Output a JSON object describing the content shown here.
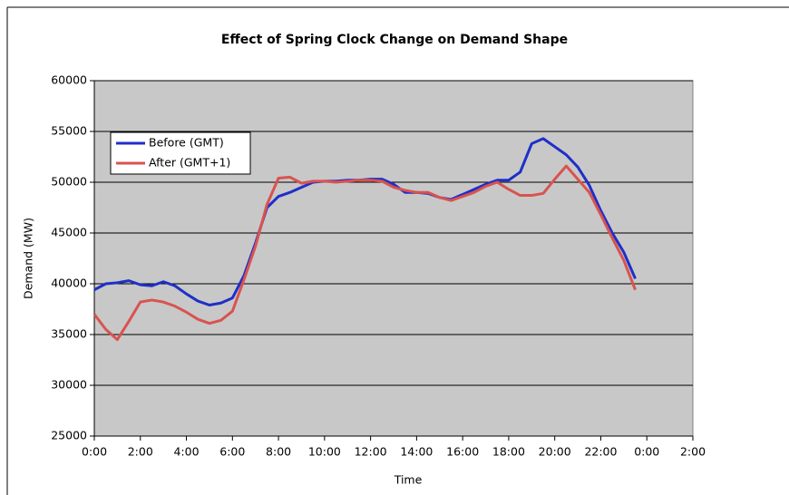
{
  "chart_data": {
    "type": "line",
    "title": "Effect of Spring Clock Change on Demand Shape",
    "x_label": "Time",
    "y_label": "Demand (MW)",
    "x": [
      0,
      0.5,
      1,
      1.5,
      2,
      2.5,
      3,
      3.5,
      4,
      4.5,
      5,
      5.5,
      6,
      6.5,
      7,
      7.5,
      8,
      8.5,
      9,
      9.5,
      10,
      10.5,
      11,
      11.5,
      12,
      12.5,
      13,
      13.5,
      14,
      14.5,
      15,
      15.5,
      16,
      16.5,
      17,
      17.5,
      18,
      18.5,
      19,
      19.5,
      20,
      20.5,
      21,
      21.5,
      22,
      22.5,
      23,
      23.5
    ],
    "series": [
      {
        "name": "Before (GMT)",
        "color": "#1f2fc8",
        "values": [
          39400,
          40000,
          40100,
          40300,
          39900,
          39800,
          40200,
          39800,
          39000,
          38300,
          37900,
          38100,
          38600,
          40800,
          44000,
          47500,
          48600,
          49000,
          49500,
          50000,
          50100,
          50100,
          50200,
          50200,
          50300,
          50300,
          49800,
          49000,
          49000,
          48900,
          48500,
          48300,
          48800,
          49300,
          49800,
          50200,
          50200,
          51000,
          53800,
          54300,
          53500,
          52700,
          51500,
          49700,
          47200,
          45000,
          43100,
          40500
        ]
      },
      {
        "name": "After (GMT+1)",
        "color": "#d9534f",
        "values": [
          37000,
          35500,
          34500,
          36300,
          38200,
          38400,
          38200,
          37800,
          37200,
          36500,
          36100,
          36400,
          37300,
          40400,
          43700,
          47800,
          50400,
          50500,
          49900,
          50100,
          50100,
          50000,
          50100,
          50200,
          50200,
          50100,
          49500,
          49200,
          49000,
          49000,
          48500,
          48200,
          48600,
          49000,
          49600,
          50000,
          49300,
          48700,
          48700,
          48900,
          50300,
          51600,
          50300,
          49000,
          46800,
          44500,
          42300,
          39400
        ]
      }
    ],
    "xlim": [
      0,
      26
    ],
    "xticks": [
      {
        "value": 0,
        "label": "0:00"
      },
      {
        "value": 2,
        "label": "2:00"
      },
      {
        "value": 4,
        "label": "4:00"
      },
      {
        "value": 6,
        "label": "6:00"
      },
      {
        "value": 8,
        "label": "8:00"
      },
      {
        "value": 10,
        "label": "10:00"
      },
      {
        "value": 12,
        "label": "12:00"
      },
      {
        "value": 14,
        "label": "14:00"
      },
      {
        "value": 16,
        "label": "16:00"
      },
      {
        "value": 18,
        "label": "18:00"
      },
      {
        "value": 20,
        "label": "20:00"
      },
      {
        "value": 22,
        "label": "22:00"
      },
      {
        "value": 24,
        "label": "0:00"
      },
      {
        "value": 26,
        "label": "2:00"
      }
    ],
    "ylim": [
      25000,
      60000
    ],
    "yticks": [
      25000,
      30000,
      35000,
      40000,
      45000,
      50000,
      55000,
      60000
    ],
    "grid": true,
    "legend": "upper left",
    "plot_background": "#c8c8c8"
  }
}
